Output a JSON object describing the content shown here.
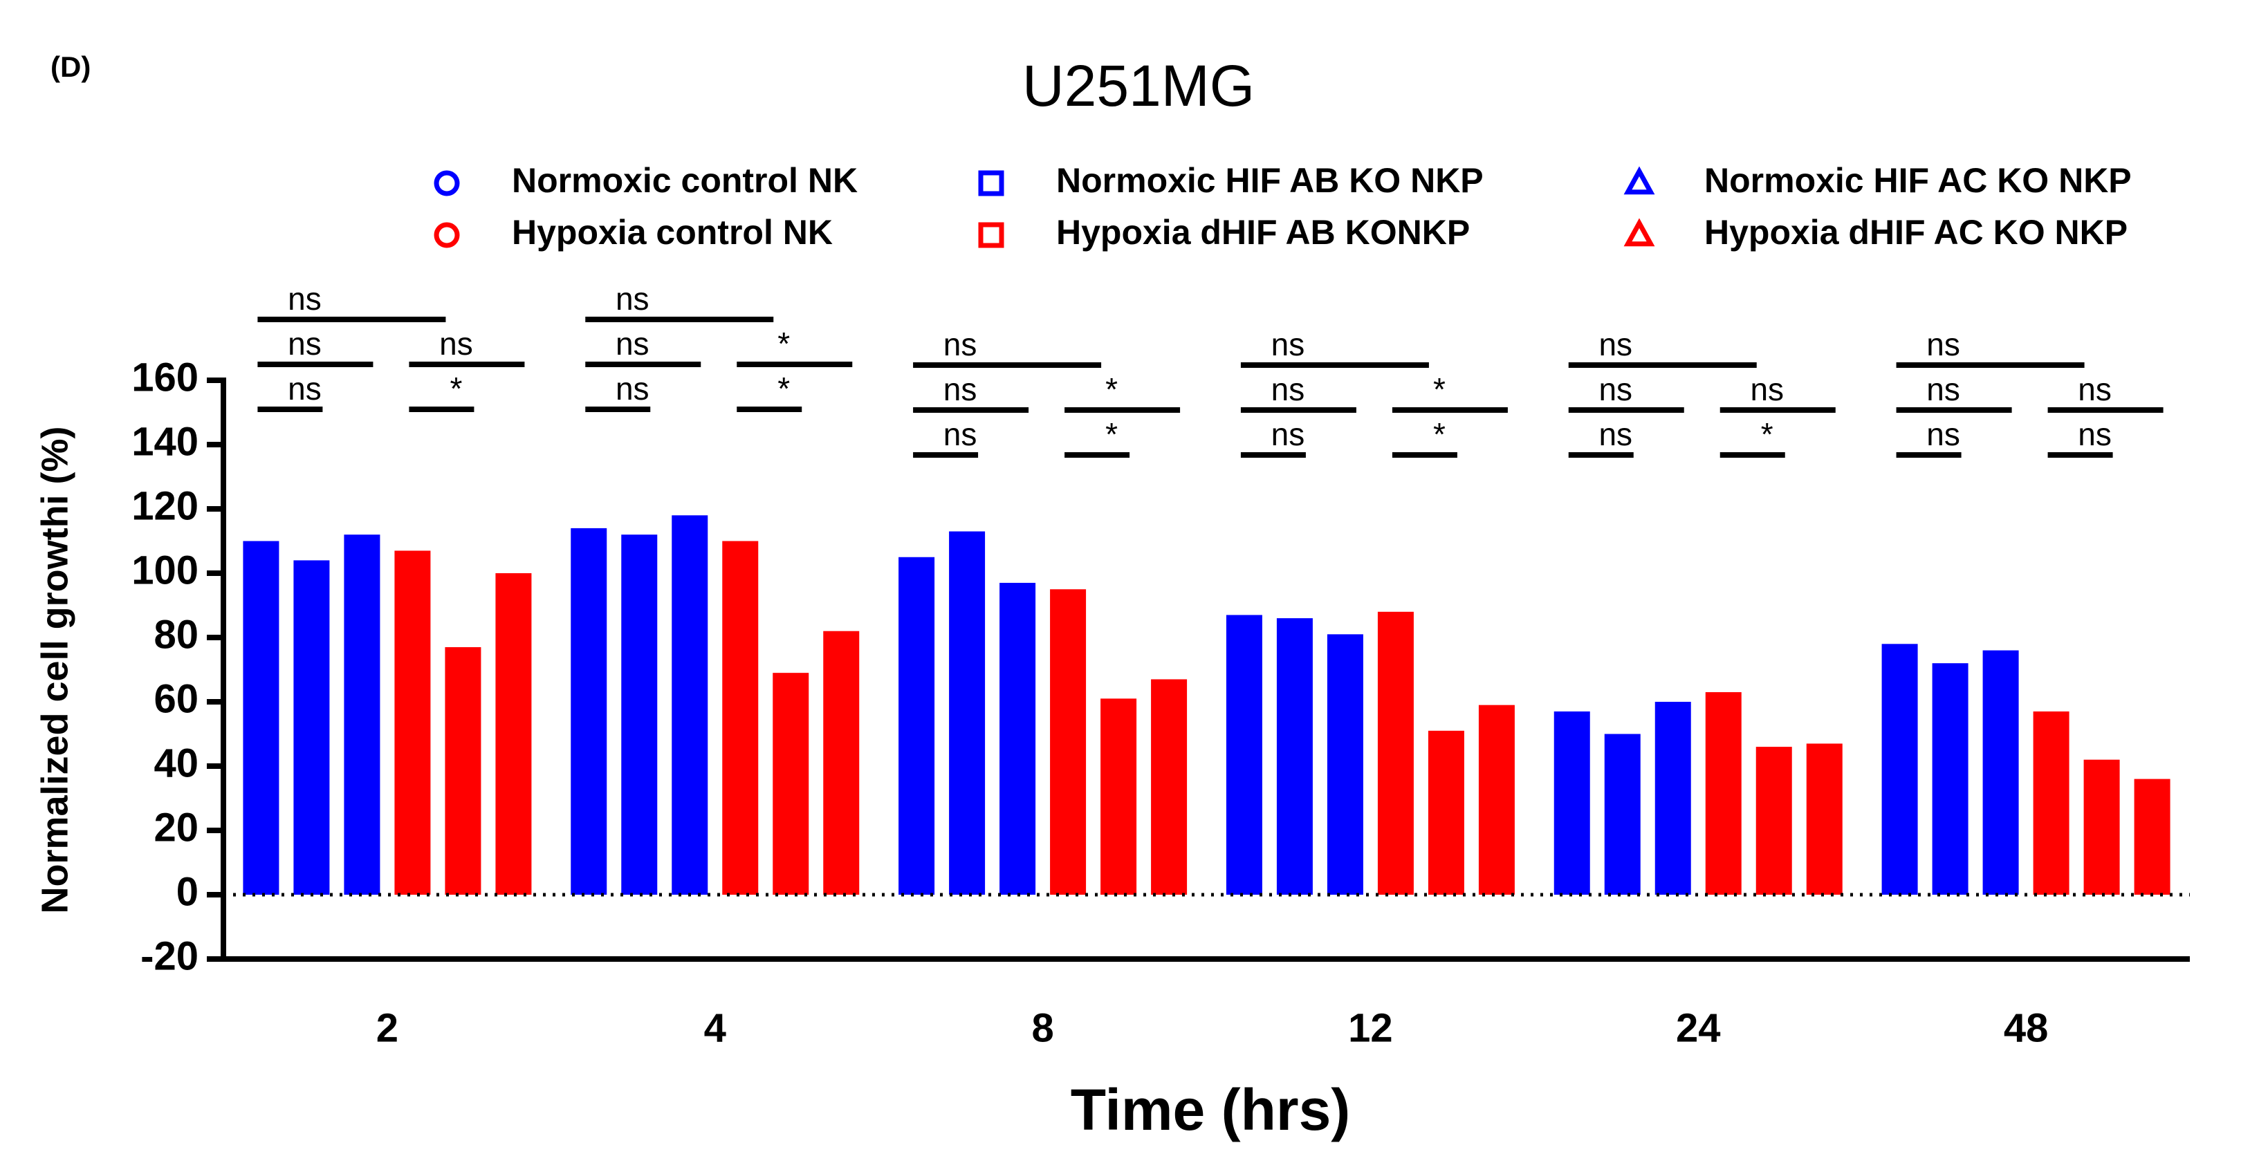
{
  "chart_data": {
    "type": "bar",
    "panel_label": "(D)",
    "title": "U251MG",
    "x_label": "Time (hrs)",
    "y_label": "Normalized cell growthi (%)",
    "categories": [
      "2",
      "4",
      "8",
      "12",
      "24",
      "48"
    ],
    "series": [
      {
        "name": "Normoxic control NK",
        "color": "#0000ff",
        "marker": "circle",
        "values": [
          110,
          114,
          105,
          87,
          57,
          78
        ]
      },
      {
        "name": "Normoxic HIF AB KO NKP",
        "color": "#0000ff",
        "marker": "square",
        "values": [
          104,
          112,
          113,
          86,
          50,
          72
        ]
      },
      {
        "name": "Normoxic HIF AC KO NKP",
        "color": "#0000ff",
        "marker": "triangle",
        "values": [
          112,
          118,
          97,
          81,
          60,
          76
        ]
      },
      {
        "name": "Hypoxia control NK",
        "color": "#ff0000",
        "marker": "circle",
        "values": [
          107,
          110,
          95,
          88,
          63,
          57
        ]
      },
      {
        "name": "Hypoxia dHIF AB KONKP",
        "color": "#ff0000",
        "marker": "square",
        "values": [
          77,
          69,
          61,
          51,
          46,
          42
        ]
      },
      {
        "name": "Hypoxia dHIF AC KO NKP",
        "color": "#ff0000",
        "marker": "triangle",
        "values": [
          100,
          82,
          67,
          59,
          47,
          36
        ]
      }
    ],
    "comparison_pairs": [
      [
        0,
        3
      ],
      [
        0,
        2
      ],
      [
        3,
        5
      ],
      [
        0,
        1
      ],
      [
        3,
        4
      ]
    ],
    "significance": [
      [
        "ns",
        "ns",
        "ns",
        "ns",
        "*"
      ],
      [
        "ns",
        "ns",
        "*",
        "ns",
        "*"
      ],
      [
        "ns",
        "ns",
        "*",
        "ns",
        "*"
      ],
      [
        "ns",
        "ns",
        "*",
        "ns",
        "*"
      ],
      [
        "ns",
        "ns",
        "ns",
        "ns",
        "*"
      ],
      [
        "ns",
        "ns",
        "ns",
        "ns",
        "ns"
      ]
    ],
    "ylim": [
      -20,
      160
    ],
    "yticks": [
      -20,
      0,
      20,
      40,
      60,
      80,
      100,
      120,
      140,
      160
    ],
    "zero_line": "dotted",
    "grid": false
  }
}
